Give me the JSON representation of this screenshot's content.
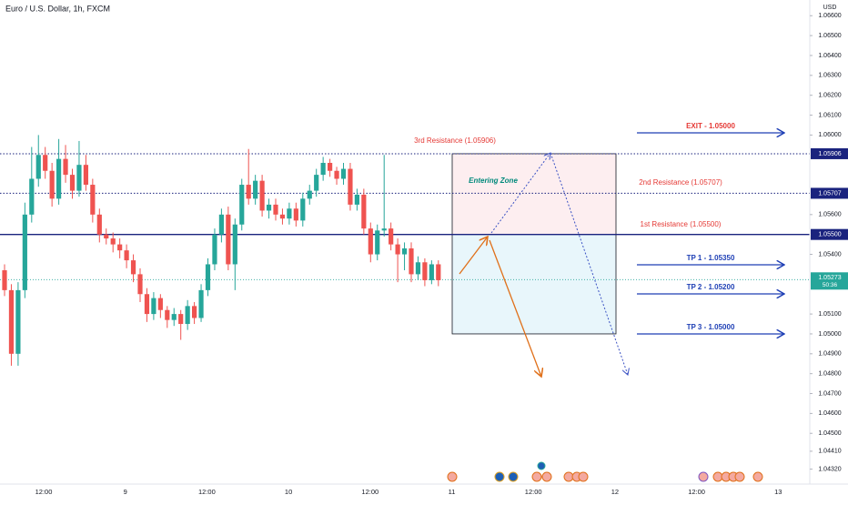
{
  "chart_data": {
    "type": "candlestick",
    "title": "Euro / U.S. Dollar, 1h, FXCM",
    "currency": "USD",
    "up_color": "#26a69a",
    "down_color": "#ef5350",
    "ylim": [
      1.04254,
      1.06679
    ],
    "yticks": [
      {
        "value": 1.066,
        "label": "1.06600"
      },
      {
        "value": 1.065,
        "label": "1.06500"
      },
      {
        "value": 1.064,
        "label": "1.06400"
      },
      {
        "value": 1.063,
        "label": "1.06300"
      },
      {
        "value": 1.062,
        "label": "1.06200"
      },
      {
        "value": 1.061,
        "label": "1.06100"
      },
      {
        "value": 1.06,
        "label": "1.06000"
      },
      {
        "value": 1.056,
        "label": "1.05600"
      },
      {
        "value": 1.054,
        "label": "1.05400"
      },
      {
        "value": 1.051,
        "label": "1.05100"
      },
      {
        "value": 1.05,
        "label": "1.05000"
      },
      {
        "value": 1.049,
        "label": "1.04900"
      },
      {
        "value": 1.048,
        "label": "1.04800"
      },
      {
        "value": 1.047,
        "label": "1.04700"
      },
      {
        "value": 1.046,
        "label": "1.04600"
      },
      {
        "value": 1.045,
        "label": "1.04500"
      },
      {
        "value": 1.0441,
        "label": "1.04410"
      },
      {
        "value": 1.0432,
        "label": "1.04320"
      }
    ],
    "xtick_labels": [
      "12:00",
      "9",
      "12:00",
      "10",
      "12:00",
      "11",
      "12:00",
      "12",
      "12:00",
      "13"
    ],
    "levels": [
      {
        "value": 1.05906,
        "label": "1.05906",
        "style": "dotted",
        "name": "3rd Resistance (1.05906)"
      },
      {
        "value": 1.05707,
        "label": "1.05707",
        "style": "dotted",
        "name": "2nd Resistance (1.05707)"
      },
      {
        "value": 1.055,
        "label": "1.05500",
        "style": "solid",
        "name": "1st Resistance (1.05500)"
      }
    ],
    "last_price": {
      "value": 1.05273,
      "label": "1.05273"
    },
    "countdown": "50:36",
    "zone": {
      "label": "Entering Zone",
      "top": 1.05906,
      "mid": 1.055,
      "bottom": 1.05
    },
    "targets": [
      "EXIT - 1.05000",
      "TP 1 - 1.05350",
      "TP 2 - 1.05200",
      "TP 3 - 1.05000"
    ],
    "open": [
      1.0532,
      1.0522,
      1.049,
      1.0522,
      1.056,
      1.0578,
      1.059,
      1.0582,
      1.0568,
      1.0588,
      1.058,
      1.0572,
      1.0585,
      1.0575,
      1.056,
      1.055,
      1.0548,
      1.0545,
      1.0542,
      1.0537,
      1.053,
      1.052,
      1.051,
      1.0518,
      1.0512,
      1.0507,
      1.051,
      1.0505,
      1.0514,
      1.0508,
      1.0522,
      1.0535,
      1.055,
      1.056,
      1.0535,
      1.0555,
      1.0575,
      1.0568,
      1.0577,
      1.0562,
      1.0565,
      1.056,
      1.0558,
      1.0563,
      1.0557,
      1.0568,
      1.0572,
      1.058,
      1.0586,
      1.0582,
      1.0578,
      1.0583,
      1.0565,
      1.057,
      1.0553,
      1.054,
      1.0552,
      1.0553,
      1.0545,
      1.054,
      1.0543,
      1.053,
      1.0536,
      1.0527,
      1.0535
    ],
    "high": [
      1.0535,
      1.0525,
      1.0526,
      1.0566,
      1.0594,
      1.06,
      1.0594,
      1.0586,
      1.0598,
      1.0595,
      1.0583,
      1.0597,
      1.059,
      1.0578,
      1.0563,
      1.0553,
      1.0551,
      1.0548,
      1.0545,
      1.054,
      1.0533,
      1.0523,
      1.0521,
      1.052,
      1.0514,
      1.0513,
      1.0512,
      1.0517,
      1.0516,
      1.0525,
      1.0538,
      1.0553,
      1.0563,
      1.0564,
      1.0558,
      1.0578,
      1.0593,
      1.058,
      1.058,
      1.0568,
      1.0568,
      1.0563,
      1.0566,
      1.0566,
      1.0571,
      1.0575,
      1.0583,
      1.0589,
      1.0588,
      1.0584,
      1.0586,
      1.0586,
      1.0573,
      1.0573,
      1.0556,
      1.0555,
      1.059,
      1.0556,
      1.0548,
      1.0546,
      1.0546,
      1.0539,
      1.0538,
      1.0537,
      1.0537
    ],
    "low": [
      1.0519,
      1.0484,
      1.0484,
      1.0518,
      1.0556,
      1.0574,
      1.0578,
      1.0564,
      1.0565,
      1.0576,
      1.0568,
      1.0569,
      1.0572,
      1.0556,
      1.0546,
      1.0545,
      1.0541,
      1.0538,
      1.0533,
      1.0526,
      1.0516,
      1.0506,
      1.0507,
      1.0508,
      1.0503,
      1.0504,
      1.0497,
      1.0502,
      1.0505,
      1.0506,
      1.0519,
      1.0532,
      1.0546,
      1.0532,
      1.0522,
      1.0552,
      1.0565,
      1.0565,
      1.0559,
      1.0558,
      1.0557,
      1.0555,
      1.0555,
      1.0554,
      1.0554,
      1.0565,
      1.0569,
      1.0577,
      1.0579,
      1.0575,
      1.0575,
      1.0562,
      1.0562,
      1.055,
      1.0536,
      1.0537,
      1.0549,
      1.0542,
      1.0526,
      1.0532,
      1.0526,
      1.0527,
      1.0524,
      1.0525,
      1.0524
    ],
    "close": [
      1.0522,
      1.049,
      1.0522,
      1.056,
      1.0578,
      1.059,
      1.0582,
      1.0568,
      1.0588,
      1.058,
      1.0572,
      1.0585,
      1.0575,
      1.056,
      1.055,
      1.0548,
      1.0545,
      1.0542,
      1.0537,
      1.053,
      1.052,
      1.051,
      1.0518,
      1.0512,
      1.0507,
      1.051,
      1.0505,
      1.0514,
      1.0508,
      1.0522,
      1.0535,
      1.055,
      1.056,
      1.0535,
      1.0555,
      1.0575,
      1.0568,
      1.0577,
      1.0562,
      1.0565,
      1.056,
      1.0558,
      1.0563,
      1.0557,
      1.0568,
      1.0572,
      1.058,
      1.0586,
      1.0582,
      1.0578,
      1.0583,
      1.0565,
      1.057,
      1.0553,
      1.054,
      1.0552,
      1.0553,
      1.0545,
      1.054,
      1.0543,
      1.053,
      1.0536,
      1.0527,
      1.0535,
      1.0527
    ]
  }
}
